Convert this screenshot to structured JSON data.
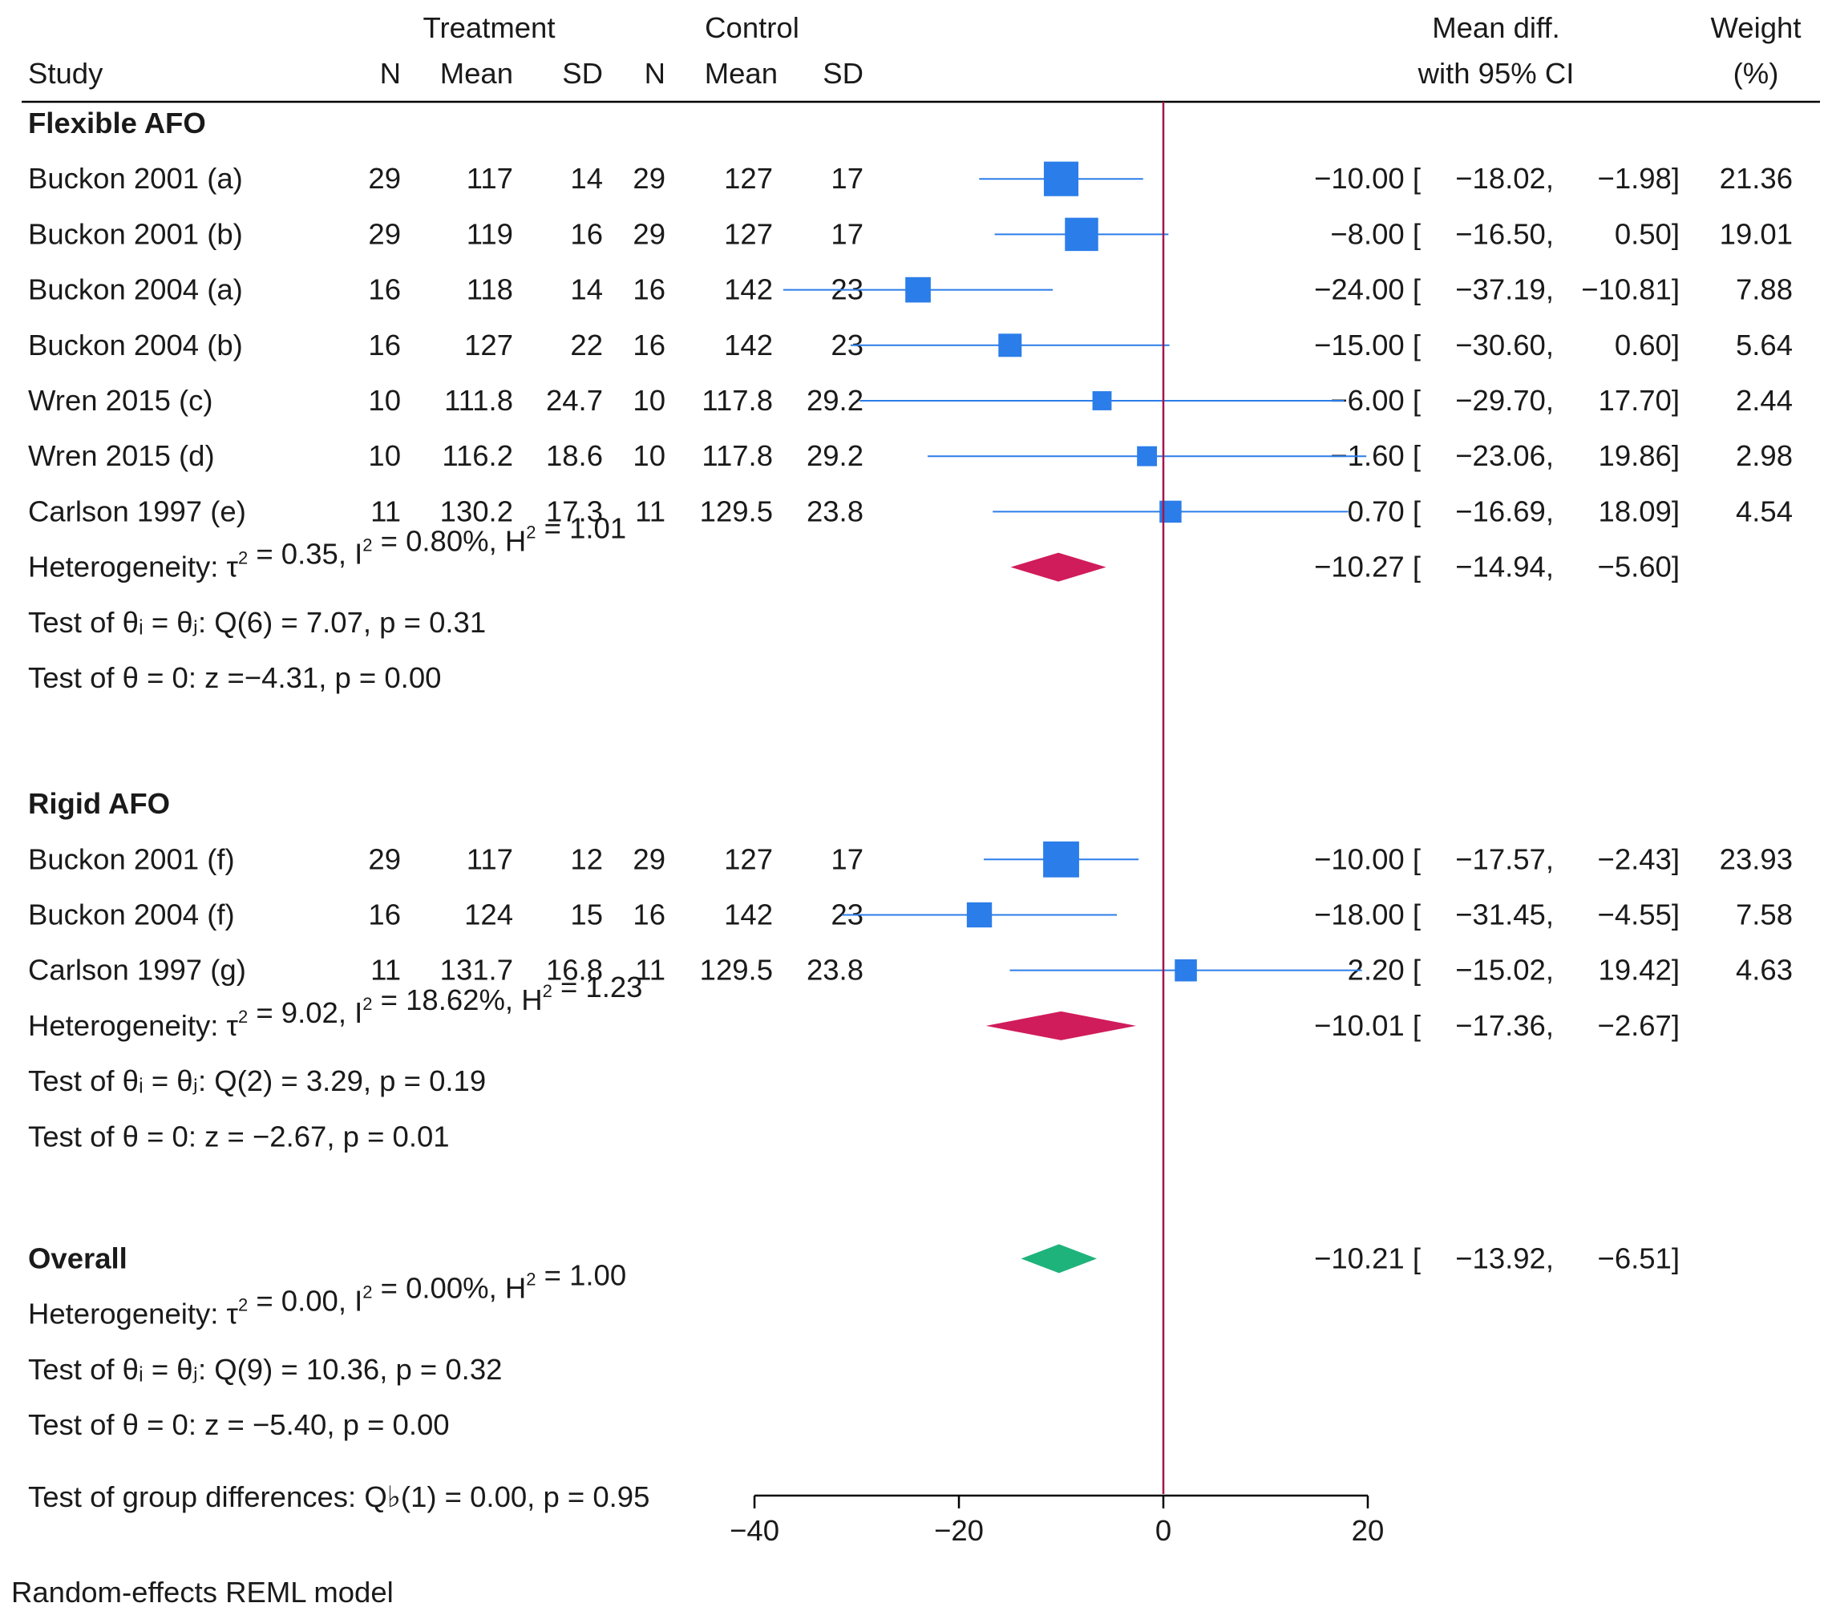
{
  "chart_data": {
    "type": "forest",
    "headers": {
      "treatment": "Treatment",
      "control": "Control",
      "study": "Study",
      "n": "N",
      "mean": "Mean",
      "sd": "SD",
      "effect_line1": "Mean diff.",
      "effect_line2": "with 95% CI",
      "weight_line1": "Weight",
      "weight_line2": "(%)"
    },
    "xaxis": {
      "ticks": [
        -40,
        -20,
        0,
        20
      ],
      "tick_labels": [
        "−40",
        "−20",
        "0",
        "20"
      ],
      "xlim": [
        -40,
        20
      ],
      "reference_line": 0
    },
    "colors": {
      "study_marker": "#2b7de9",
      "subgroup_diamond": "#d01c5b",
      "overall_diamond": "#1fb37c",
      "reference_line": "#a3154a",
      "text": "#1a1a1a"
    },
    "groups": [
      {
        "name": "Flexible AFO",
        "studies": [
          {
            "study": "Buckon 2001 (a)",
            "tN": "29",
            "tMean": "117",
            "tSD": "14",
            "cN": "29",
            "cMean": "127",
            "cSD": "17",
            "md": -10.0,
            "lo": -18.02,
            "hi": -1.98,
            "md_text": "−10.00",
            "lo_text": "−18.02,",
            "hi_text": "−1.98]",
            "weight": 21.36,
            "weight_text": "21.36"
          },
          {
            "study": "Buckon 2001 (b)",
            "tN": "29",
            "tMean": "119",
            "tSD": "16",
            "cN": "29",
            "cMean": "127",
            "cSD": "17",
            "md": -8.0,
            "lo": -16.5,
            "hi": 0.5,
            "md_text": "−8.00",
            "lo_text": "−16.50,",
            "hi_text": "0.50]",
            "weight": 19.01,
            "weight_text": "19.01"
          },
          {
            "study": "Buckon 2004 (a)",
            "tN": "16",
            "tMean": "118",
            "tSD": "14",
            "cN": "16",
            "cMean": "142",
            "cSD": "23",
            "md": -24.0,
            "lo": -37.19,
            "hi": -10.81,
            "md_text": "−24.00",
            "lo_text": "−37.19,",
            "hi_text": "−10.81]",
            "weight": 7.88,
            "weight_text": "7.88"
          },
          {
            "study": "Buckon 2004 (b)",
            "tN": "16",
            "tMean": "127",
            "tSD": "22",
            "cN": "16",
            "cMean": "142",
            "cSD": "23",
            "md": -15.0,
            "lo": -30.6,
            "hi": 0.6,
            "md_text": "−15.00",
            "lo_text": "−30.60,",
            "hi_text": "0.60]",
            "weight": 5.64,
            "weight_text": "5.64"
          },
          {
            "study": "Wren 2015 (c)",
            "tN": "10",
            "tMean": "111.8",
            "tSD": "24.7",
            "cN": "10",
            "cMean": "117.8",
            "cSD": "29.2",
            "md": -6.0,
            "lo": -29.7,
            "hi": 17.7,
            "md_text": "−6.00",
            "lo_text": "−29.70,",
            "hi_text": "17.70]",
            "weight": 2.44,
            "weight_text": "2.44"
          },
          {
            "study": "Wren 2015 (d)",
            "tN": "10",
            "tMean": "116.2",
            "tSD": "18.6",
            "cN": "10",
            "cMean": "117.8",
            "cSD": "29.2",
            "md": -1.6,
            "lo": -23.06,
            "hi": 19.86,
            "md_text": "−1.60",
            "lo_text": "−23.06,",
            "hi_text": "19.86]",
            "weight": 2.98,
            "weight_text": "2.98"
          },
          {
            "study": "Carlson 1997 (e)",
            "tN": "11",
            "tMean": "130.2",
            "tSD": "17.3",
            "cN": "11",
            "cMean": "129.5",
            "cSD": "23.8",
            "md": 0.7,
            "lo": -16.69,
            "hi": 18.09,
            "md_text": "0.70",
            "lo_text": "−16.69,",
            "hi_text": "18.09]",
            "weight": 4.54,
            "weight_text": "4.54"
          }
        ],
        "summary": {
          "md": -10.27,
          "lo": -14.94,
          "hi": -5.6,
          "md_text": "−10.27",
          "lo_text": "−14.94,",
          "hi_text": "−5.60]"
        },
        "stats": [
          {
            "pre": "Heterogeneity: τ",
            "sup": "2",
            "post": " = 0.35, I",
            "sup2": "2",
            "post2": " = 0.80%, H",
            "sup3": "2",
            "post3": " = 1.01"
          },
          {
            "text": "Test of θᵢ = θⱼ: Q(6) = 7.07, p = 0.31"
          },
          {
            "text": "Test of θ = 0: z =−4.31, p = 0.00"
          }
        ]
      },
      {
        "name": "Rigid AFO",
        "studies": [
          {
            "study": "Buckon 2001 (f)",
            "tN": "29",
            "tMean": "117",
            "tSD": "12",
            "cN": "29",
            "cMean": "127",
            "cSD": "17",
            "md": -10.0,
            "lo": -17.57,
            "hi": -2.43,
            "md_text": "−10.00",
            "lo_text": "−17.57,",
            "hi_text": "−2.43]",
            "weight": 23.93,
            "weight_text": "23.93"
          },
          {
            "study": "Buckon 2004 (f)",
            "tN": "16",
            "tMean": "124",
            "tSD": "15",
            "cN": "16",
            "cMean": "142",
            "cSD": "23",
            "md": -18.0,
            "lo": -31.45,
            "hi": -4.55,
            "md_text": "−18.00",
            "lo_text": "−31.45,",
            "hi_text": "−4.55]",
            "weight": 7.58,
            "weight_text": "7.58"
          },
          {
            "study": "Carlson 1997 (g)",
            "tN": "11",
            "tMean": "131.7",
            "tSD": "16.8",
            "cN": "11",
            "cMean": "129.5",
            "cSD": "23.8",
            "md": 2.2,
            "lo": -15.02,
            "hi": 19.42,
            "md_text": "2.20",
            "lo_text": "−15.02,",
            "hi_text": "19.42]",
            "weight": 4.63,
            "weight_text": "4.63"
          }
        ],
        "summary": {
          "md": -10.01,
          "lo": -17.36,
          "hi": -2.67,
          "md_text": "−10.01",
          "lo_text": "−17.36,",
          "hi_text": "−2.67]"
        },
        "stats": [
          {
            "pre": "Heterogeneity: τ",
            "sup": "2",
            "post": " = 9.02, I",
            "sup2": "2",
            "post2": " = 18.62%, H",
            "sup3": "2",
            "post3": " = 1.23"
          },
          {
            "text": "Test of θᵢ = θⱼ: Q(2) = 3.29, p = 0.19"
          },
          {
            "text": "Test of θ = 0: z = −2.67, p = 0.01"
          }
        ]
      }
    ],
    "overall": {
      "name": "Overall",
      "summary": {
        "md": -10.21,
        "lo": -13.92,
        "hi": -6.51,
        "md_text": "−10.21",
        "lo_text": "−13.92,",
        "hi_text": "−6.51]"
      },
      "stats": [
        {
          "pre": "Heterogeneity: τ",
          "sup": "2",
          "post": " = 0.00, I",
          "sup2": "2",
          "post2": " = 0.00%, H",
          "sup3": "2",
          "post3": " = 1.00"
        },
        {
          "text": "Test of θᵢ = θⱼ: Q(9) = 10.36, p = 0.32"
        },
        {
          "text": "Test of θ = 0: z = −5.40, p = 0.00"
        }
      ],
      "group_test": "Test of group differences: Q♭(1) = 0.00, p = 0.95"
    },
    "footnote": "Random-effects REML model"
  }
}
